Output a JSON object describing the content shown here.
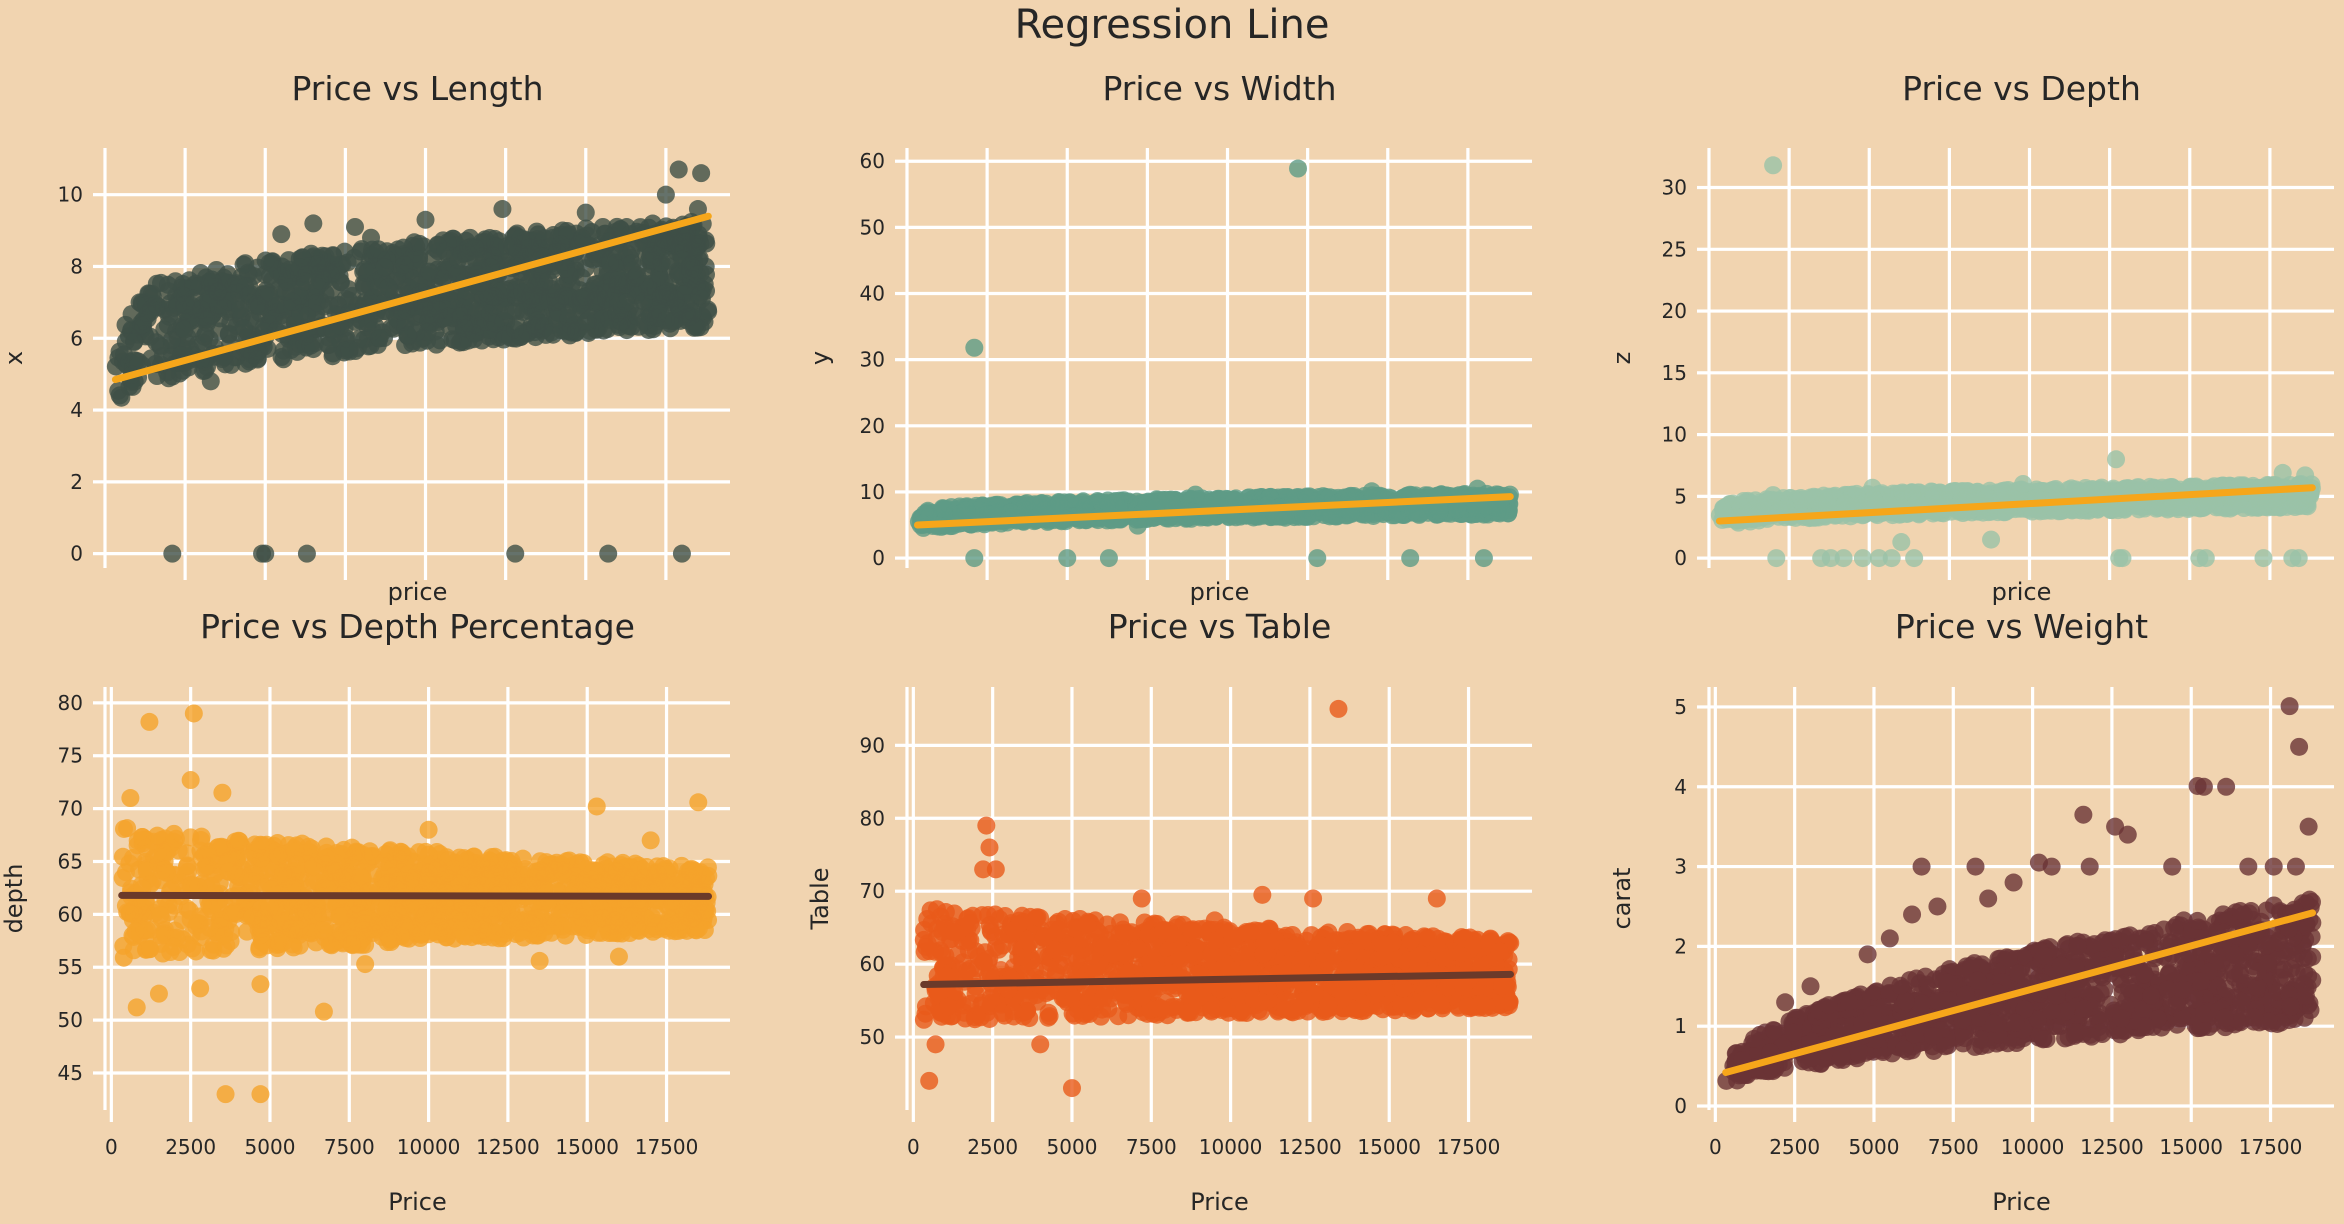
{
  "suptitle": "Regression Line",
  "colors": {
    "background": "#f1d4b0",
    "grid": "#ffffff",
    "regression_light": "#f6a61a",
    "regression_dark": "#6b3a2a"
  },
  "chart_data": [
    {
      "type": "scatter",
      "title": "Price vs Length",
      "xlabel": "price",
      "ylabel": "x",
      "xlim": [
        0,
        19500
      ],
      "ylim": [
        -0.4,
        11.3
      ],
      "xticks": [
        2500,
        5000,
        7500,
        10000,
        12500,
        15000,
        17500
      ],
      "show_xtick_labels": false,
      "yticks": [
        0,
        2,
        4,
        6,
        8,
        10
      ],
      "point_color": "#3e4f46",
      "line_color": "#f6a61a",
      "regression": {
        "x": [
          326,
          18823
        ],
        "y": [
          4.85,
          9.4
        ]
      },
      "band": {
        "xstart": 326,
        "xend": 18823,
        "lo_start": 3.8,
        "lo_end": 6.3,
        "hi_start": 6.4,
        "hi_end": 9.3,
        "curve": 0.35
      },
      "outliers": [
        [
          2000,
          6.6
        ],
        [
          3500,
          7.3
        ],
        [
          5500,
          8.9
        ],
        [
          7800,
          9.1
        ],
        [
          10000,
          9.3
        ],
        [
          12400,
          9.6
        ],
        [
          15000,
          9.5
        ],
        [
          17500,
          10.0
        ],
        [
          17900,
          10.7
        ],
        [
          18600,
          10.6
        ],
        [
          18500,
          9.6
        ],
        [
          6500,
          9.2
        ],
        [
          8300,
          8.8
        ],
        [
          1800,
          5.5
        ],
        [
          3300,
          4.8
        ],
        [
          7100,
          5.5
        ],
        [
          11200,
          6.3
        ],
        [
          14500,
          6.2
        ],
        [
          17000,
          6.6
        ],
        [
          2100,
          0
        ],
        [
          4900,
          0
        ],
        [
          5000,
          0
        ],
        [
          6300,
          0
        ],
        [
          12800,
          0
        ],
        [
          15700,
          0
        ],
        [
          18000,
          0
        ]
      ]
    },
    {
      "type": "scatter",
      "title": "Price vs Width",
      "xlabel": "price",
      "ylabel": "y",
      "xlim": [
        0,
        19500
      ],
      "ylim": [
        -1.5,
        62
      ],
      "xticks": [
        2500,
        5000,
        7500,
        10000,
        12500,
        15000,
        17500
      ],
      "show_xtick_labels": false,
      "yticks": [
        0,
        10,
        20,
        30,
        40,
        50,
        60
      ],
      "point_color": "#5e9b86",
      "line_color": "#f6a61a",
      "regression": {
        "x": [
          326,
          18823
        ],
        "y": [
          5.0,
          9.3
        ]
      },
      "band": {
        "xstart": 326,
        "xend": 18823,
        "lo_start": 3.8,
        "lo_end": 6.6,
        "hi_start": 6.5,
        "hi_end": 9.8,
        "curve": 0.35
      },
      "outliers": [
        [
          2100,
          31.8
        ],
        [
          12200,
          58.9
        ],
        [
          2100,
          0
        ],
        [
          5000,
          0
        ],
        [
          6300,
          0
        ],
        [
          12800,
          0
        ],
        [
          15700,
          0
        ],
        [
          18000,
          0
        ],
        [
          4200,
          8.3
        ],
        [
          9000,
          9.6
        ],
        [
          14500,
          10.1
        ],
        [
          17800,
          10.5
        ],
        [
          7200,
          4.9
        ],
        [
          11800,
          6.1
        ]
      ]
    },
    {
      "type": "scatter",
      "title": "Price vs Depth",
      "xlabel": "price",
      "ylabel": "z",
      "xlim": [
        0,
        19500
      ],
      "ylim": [
        -0.8,
        33.2
      ],
      "xticks": [
        2500,
        5000,
        7500,
        10000,
        12500,
        15000,
        17500
      ],
      "show_xtick_labels": false,
      "yticks": [
        0,
        5,
        10,
        15,
        20,
        25,
        30
      ],
      "point_color": "#9ac2a8",
      "line_color": "#f6a61a",
      "regression": {
        "x": [
          326,
          18823
        ],
        "y": [
          3.0,
          5.7
        ]
      },
      "band": {
        "xstart": 326,
        "xend": 18823,
        "lo_start": 2.3,
        "lo_end": 4.1,
        "hi_start": 4.0,
        "hi_end": 6.0,
        "curve": 0.35
      },
      "outliers": [
        [
          2000,
          31.8
        ],
        [
          12700,
          8.0
        ],
        [
          6000,
          1.3
        ],
        [
          8800,
          1.5
        ],
        [
          2100,
          0
        ],
        [
          3500,
          0
        ],
        [
          3800,
          0
        ],
        [
          4200,
          0
        ],
        [
          4800,
          0
        ],
        [
          5300,
          0
        ],
        [
          5700,
          0
        ],
        [
          6400,
          0
        ],
        [
          12800,
          0
        ],
        [
          12900,
          0
        ],
        [
          15300,
          0
        ],
        [
          15500,
          0
        ],
        [
          17300,
          0
        ],
        [
          18200,
          0
        ],
        [
          18400,
          0
        ],
        [
          2000,
          5.1
        ],
        [
          5100,
          5.7
        ],
        [
          9800,
          6.0
        ],
        [
          17900,
          6.9
        ],
        [
          18600,
          6.7
        ]
      ]
    },
    {
      "type": "scatter",
      "title": "Price vs Depth Percentage",
      "xlabel": "Price",
      "ylabel": "depth",
      "xlim": [
        -200,
        19500
      ],
      "ylim": [
        41.5,
        81.5
      ],
      "xticks": [
        0,
        2500,
        5000,
        7500,
        10000,
        12500,
        15000,
        17500
      ],
      "show_xtick_labels": true,
      "yticks": [
        45,
        50,
        55,
        60,
        65,
        70,
        75,
        80
      ],
      "point_color": "#f5a22a",
      "line_color": "#6b3a2a",
      "regression": {
        "x": [
          326,
          18823
        ],
        "y": [
          61.8,
          61.7
        ]
      },
      "band": {
        "xstart": 326,
        "xend": 18823,
        "lo_start": 55.5,
        "lo_end": 58.5,
        "hi_start": 68.5,
        "hi_end": 64.5,
        "curve": 0.7
      },
      "outliers": [
        [
          1200,
          78.2
        ],
        [
          2600,
          79.0
        ],
        [
          3600,
          43.0
        ],
        [
          4700,
          43.0
        ],
        [
          6700,
          50.8
        ],
        [
          800,
          51.2
        ],
        [
          1500,
          52.5
        ],
        [
          2800,
          53.0
        ],
        [
          4700,
          53.4
        ],
        [
          2500,
          72.7
        ],
        [
          3500,
          71.5
        ],
        [
          10000,
          68.0
        ],
        [
          15300,
          70.2
        ],
        [
          18500,
          70.6
        ],
        [
          17000,
          67.0
        ],
        [
          8000,
          55.3
        ],
        [
          13500,
          55.6
        ],
        [
          16000,
          56.0
        ],
        [
          600,
          71.0
        ]
      ]
    },
    {
      "type": "scatter",
      "title": "Price vs Table",
      "xlabel": "Price",
      "ylabel": "Table",
      "xlim": [
        -200,
        19500
      ],
      "ylim": [
        40,
        98
      ],
      "xticks": [
        0,
        2500,
        5000,
        7500,
        10000,
        12500,
        15000,
        17500
      ],
      "show_xtick_labels": true,
      "yticks": [
        50,
        60,
        70,
        80,
        90
      ],
      "point_color": "#e85a1a",
      "line_color": "#6b3a2a",
      "regression": {
        "x": [
          326,
          18823
        ],
        "y": [
          57.2,
          58.6
        ]
      },
      "band": {
        "xstart": 326,
        "xend": 18823,
        "lo_start": 52.0,
        "lo_end": 53.8,
        "hi_start": 68.0,
        "hi_end": 63.5,
        "curve": 0.7
      },
      "outliers": [
        [
          13400,
          95.0
        ],
        [
          2300,
          79.0
        ],
        [
          2400,
          76.0
        ],
        [
          2200,
          73.0
        ],
        [
          2600,
          73.0
        ],
        [
          500,
          44.0
        ],
        [
          700,
          49.0
        ],
        [
          5000,
          43.0
        ],
        [
          4000,
          49.0
        ],
        [
          11000,
          69.5
        ],
        [
          12600,
          69.0
        ],
        [
          16500,
          69.0
        ],
        [
          7200,
          69.0
        ],
        [
          9500,
          66.0
        ]
      ]
    },
    {
      "type": "scatter",
      "title": "Price vs Weight",
      "xlabel": "Price",
      "ylabel": "carat",
      "xlim": [
        -200,
        19500
      ],
      "ylim": [
        -0.05,
        5.25
      ],
      "xticks": [
        0,
        2500,
        5000,
        7500,
        10000,
        12500,
        15000,
        17500
      ],
      "show_xtick_labels": true,
      "yticks": [
        0,
        1,
        2,
        3,
        4,
        5
      ],
      "point_color": "#6a3336",
      "line_color": "#f6a61a",
      "regression": {
        "x": [
          326,
          18823
        ],
        "y": [
          0.42,
          2.42
        ]
      },
      "band": {
        "xstart": 326,
        "xend": 18823,
        "lo_start": 0.22,
        "lo_end": 1.05,
        "hi_start": 0.45,
        "hi_end": 2.6,
        "curve": 0.55
      },
      "outliers": [
        [
          18100,
          5.01
        ],
        [
          18400,
          4.5
        ],
        [
          15200,
          4.01
        ],
        [
          15400,
          4.0
        ],
        [
          16100,
          4.0
        ],
        [
          11600,
          3.65
        ],
        [
          12600,
          3.5
        ],
        [
          18700,
          3.5
        ],
        [
          6500,
          3.0
        ],
        [
          8200,
          3.0
        ],
        [
          10200,
          3.05
        ],
        [
          10600,
          3.0
        ],
        [
          11800,
          3.0
        ],
        [
          13000,
          3.4
        ],
        [
          14400,
          3.0
        ],
        [
          16800,
          3.0
        ],
        [
          17600,
          3.0
        ],
        [
          18300,
          3.0
        ],
        [
          9400,
          2.8
        ],
        [
          5500,
          2.1
        ],
        [
          6200,
          2.4
        ],
        [
          7000,
          2.5
        ],
        [
          8600,
          2.6
        ],
        [
          4800,
          1.9
        ],
        [
          3000,
          1.5
        ],
        [
          2200,
          1.3
        ]
      ]
    }
  ]
}
